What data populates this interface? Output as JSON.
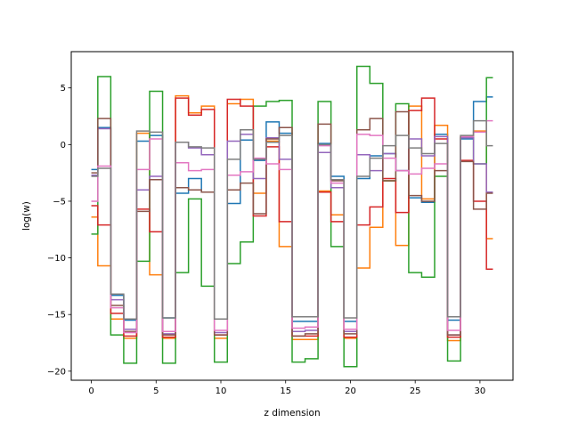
{
  "chart_data": {
    "type": "line",
    "drawstyle": "steps-mid",
    "xlabel": "z dimension",
    "ylabel": "log(w)",
    "xlim": [
      -1.55,
      32.55
    ],
    "ylim": [
      -20.8,
      8.2
    ],
    "xticks": [
      0,
      5,
      10,
      15,
      20,
      25,
      30
    ],
    "yticks": [
      -20,
      -15,
      -10,
      -5,
      0,
      5
    ],
    "grid": false,
    "legend": "none",
    "x": [
      0,
      1,
      2,
      3,
      4,
      5,
      6,
      7,
      8,
      9,
      10,
      11,
      12,
      13,
      14,
      15,
      16,
      17,
      18,
      19,
      20,
      21,
      22,
      23,
      24,
      25,
      26,
      27,
      28,
      29,
      30,
      31
    ],
    "series": [
      {
        "color": "#1f77b4",
        "values": [
          -2.2,
          1.5,
          -13.3,
          -15.5,
          0.3,
          0.8,
          -15.3,
          -4.3,
          -3.0,
          -4.2,
          -15.4,
          -5.2,
          0.4,
          -1.4,
          2.0,
          1.0,
          -15.6,
          -15.6,
          0.1,
          -2.8,
          -15.6,
          -3.0,
          -1.0,
          -0.8,
          -2.3,
          -4.7,
          -5.1,
          0.9,
          -15.5,
          0.5,
          3.8,
          4.2
        ]
      },
      {
        "color": "#ff7f0e",
        "values": [
          -6.4,
          -10.7,
          -15.4,
          -17.1,
          1.0,
          -11.5,
          -17.1,
          4.3,
          2.8,
          3.4,
          -17.1,
          3.6,
          4.0,
          -4.3,
          0.3,
          -9.0,
          -17.2,
          -17.2,
          -4.1,
          -6.2,
          -17.1,
          -10.9,
          -7.3,
          -3.2,
          -8.9,
          3.4,
          -4.8,
          1.7,
          -17.3,
          0.7,
          1.2,
          -8.3
        ]
      },
      {
        "color": "#2ca02c",
        "values": [
          -7.9,
          6.0,
          -16.8,
          -19.3,
          -10.3,
          4.7,
          -19.3,
          -11.3,
          -4.8,
          -12.5,
          -19.2,
          -10.5,
          -8.6,
          3.4,
          3.8,
          3.9,
          -19.2,
          -18.9,
          3.8,
          -9.0,
          -19.6,
          6.9,
          5.4,
          -3.2,
          3.6,
          -11.3,
          -11.7,
          -2.8,
          -19.1,
          0.6,
          -1.7,
          5.9
        ]
      },
      {
        "color": "#d62728",
        "values": [
          -5.4,
          -7.1,
          -14.9,
          -16.9,
          -5.7,
          -7.7,
          -17.0,
          4.1,
          2.6,
          3.1,
          -16.8,
          4.0,
          3.4,
          -6.3,
          -0.2,
          -6.8,
          -16.9,
          -16.9,
          -4.2,
          -6.8,
          -17.0,
          -7.1,
          -5.5,
          -3.0,
          -6.0,
          3.0,
          4.1,
          0.5,
          -17.0,
          -1.4,
          -5.0,
          -11.0
        ]
      },
      {
        "color": "#9467bd",
        "values": [
          -2.7,
          1.4,
          -13.7,
          -16.3,
          -4.0,
          -2.8,
          -16.7,
          0.2,
          -0.3,
          -0.9,
          -16.6,
          0.3,
          0.9,
          -3.0,
          0.6,
          -1.3,
          -16.5,
          -16.4,
          -0.7,
          -3.8,
          -16.5,
          -0.9,
          -2.3,
          -0.8,
          -2.3,
          0.5,
          -1.0,
          0.7,
          -16.8,
          0.6,
          -1.7,
          -4.2
        ]
      },
      {
        "color": "#8c564b",
        "values": [
          -2.5,
          2.3,
          -14.2,
          -16.5,
          -5.9,
          -3.1,
          -16.8,
          -3.8,
          -4.0,
          -4.2,
          -16.8,
          -4.0,
          -3.4,
          -6.1,
          0.5,
          1.5,
          -16.9,
          -16.7,
          1.8,
          -3.2,
          -16.7,
          1.3,
          2.3,
          -3.2,
          2.9,
          -4.5,
          -5.0,
          -2.3,
          -16.8,
          -1.5,
          -5.7,
          -4.3
        ]
      },
      {
        "color": "#e377c2",
        "values": [
          -5.0,
          -1.9,
          -14.4,
          -16.6,
          -2.2,
          0.5,
          -16.5,
          -1.6,
          -2.3,
          -2.2,
          -16.4,
          -2.7,
          -2.4,
          -1.2,
          -1.7,
          -2.2,
          -16.2,
          -16.1,
          -0.1,
          -3.4,
          -16.3,
          0.9,
          0.8,
          -1.2,
          -2.3,
          -2.6,
          -2.1,
          -1.7,
          -16.4,
          0.7,
          1.1,
          2.1
        ]
      },
      {
        "color": "#7f7f7f",
        "values": [
          -2.8,
          -2.1,
          -13.2,
          -15.4,
          1.2,
          1.1,
          -15.3,
          0.2,
          -0.2,
          -0.3,
          -15.4,
          -1.3,
          1.3,
          -1.3,
          0.2,
          0.8,
          -15.2,
          -15.2,
          0.0,
          -3.1,
          -15.3,
          -2.8,
          -1.2,
          -0.1,
          0.8,
          -0.3,
          -0.8,
          0.1,
          -15.2,
          0.8,
          2.1,
          -0.1
        ]
      }
    ]
  }
}
